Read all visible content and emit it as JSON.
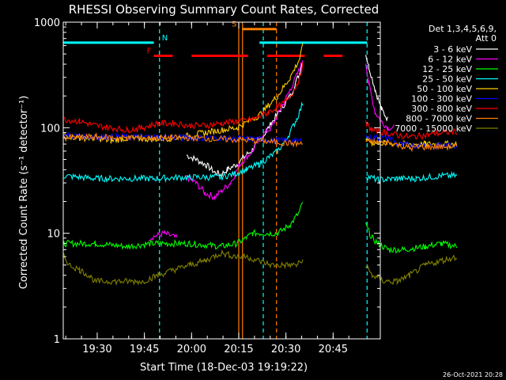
{
  "chart_data": {
    "type": "line",
    "title": "RHESSI Observing Summary Count Rates, Corrected",
    "xlabel": "Start Time (18-Dec-03 19:19:22)",
    "ylabel": "Corrected Count Rate (s⁻¹ detector⁻¹)",
    "ylog": true,
    "ylim": [
      1,
      1000
    ],
    "xlim_min": [
      19.32,
      21.0
    ],
    "x_ticks_min": [
      30,
      45,
      60,
      75,
      90,
      105
    ],
    "x_tick_labels": [
      "19:30",
      "19:45",
      "20:00",
      "20:15",
      "20:30",
      "20:45"
    ],
    "y_ticks": [
      1,
      10,
      100,
      1000
    ],
    "y_tick_labels": [
      "1",
      "10",
      "100",
      "1000"
    ],
    "legend_header": [
      "Det 1,3,4,5,6,9,",
      "Att 0"
    ],
    "legend_placement": "right",
    "series": [
      {
        "name": "3 - 6 keV",
        "color": "#ffffff",
        "segments": [
          [
            [
              39,
              55
            ],
            [
              42,
              50
            ],
            [
              45,
              45
            ],
            [
              48,
              38
            ],
            [
              50,
              36
            ],
            [
              52,
              40
            ],
            [
              55,
              45
            ],
            [
              58,
              55
            ],
            [
              60,
              62
            ],
            [
              63,
              80
            ],
            [
              66,
              110
            ],
            [
              69,
              150
            ],
            [
              72,
              200
            ],
            [
              75,
              330
            ],
            [
              76,
              440
            ]
          ],
          [
            [
              96,
              500
            ],
            [
              97,
              380
            ],
            [
              99,
              230
            ],
            [
              101,
              150
            ],
            [
              103,
              120
            ]
          ]
        ]
      },
      {
        "name": "6 - 12 keV",
        "color": "#ff00ff",
        "segments": [
          [
            [
              27,
              9
            ],
            [
              32,
              10
            ],
            [
              36,
              9
            ]
          ],
          [
            [
              39,
              34
            ],
            [
              42,
              30
            ],
            [
              45,
              24
            ],
            [
              48,
              22
            ],
            [
              50,
              25
            ],
            [
              53,
              30
            ],
            [
              56,
              45
            ],
            [
              60,
              60
            ],
            [
              63,
              85
            ],
            [
              66,
              100
            ],
            [
              69,
              150
            ],
            [
              72,
              230
            ],
            [
              75,
              360
            ],
            [
              76,
              450
            ]
          ],
          [
            [
              96,
              420
            ],
            [
              97,
              260
            ],
            [
              99,
              140
            ],
            [
              101,
              115
            ],
            [
              103,
              100
            ],
            [
              105,
              100
            ]
          ]
        ]
      },
      {
        "name": "12 - 25 keV",
        "color": "#00ff00",
        "segments": [
          [
            [
              0,
              8
            ],
            [
              10,
              8
            ],
            [
              20,
              7.5
            ],
            [
              28,
              8
            ],
            [
              30,
              8
            ],
            [
              40,
              8
            ],
            [
              50,
              7.5
            ],
            [
              55,
              8
            ],
            [
              58,
              9
            ],
            [
              60,
              10
            ],
            [
              64,
              10
            ],
            [
              68,
              10
            ],
            [
              72,
              12
            ],
            [
              75,
              16
            ],
            [
              76,
              20
            ]
          ],
          [
            [
              96,
              12
            ],
            [
              98,
              9
            ],
            [
              100,
              8
            ],
            [
              103,
              7
            ],
            [
              108,
              7
            ],
            [
              115,
              7.5
            ],
            [
              120,
              8
            ],
            [
              125,
              7.5
            ]
          ]
        ]
      },
      {
        "name": "25 - 50 keV",
        "color": "#00ffff",
        "segments": [
          [
            [
              0,
              35
            ],
            [
              10,
              33
            ],
            [
              20,
              33
            ],
            [
              28,
              33
            ],
            [
              40,
              34
            ],
            [
              50,
              34
            ],
            [
              55,
              37
            ],
            [
              58,
              40
            ],
            [
              62,
              45
            ],
            [
              65,
              52
            ],
            [
              68,
              60
            ],
            [
              71,
              80
            ],
            [
              74,
              120
            ],
            [
              76,
              170
            ]
          ],
          [
            [
              96,
              35
            ],
            [
              100,
              32
            ],
            [
              106,
              33
            ],
            [
              112,
              33
            ],
            [
              120,
              35
            ],
            [
              125,
              35
            ]
          ]
        ]
      },
      {
        "name": "50 - 100 keV",
        "color": "#ffcc00",
        "segments": [
          [
            [
              0,
              85
            ],
            [
              5,
              80
            ],
            [
              10,
              80
            ],
            [
              15,
              75
            ],
            [
              20,
              80
            ],
            [
              28,
              78
            ],
            [
              36,
              80
            ],
            [
              45,
              90
            ],
            [
              55,
              100
            ],
            [
              62,
              130
            ],
            [
              68,
              200
            ],
            [
              72,
              300
            ],
            [
              75,
              450
            ],
            [
              76,
              600
            ]
          ],
          [
            [
              96,
              80
            ],
            [
              98,
              72
            ],
            [
              102,
              72
            ],
            [
              108,
              70
            ],
            [
              115,
              70
            ],
            [
              125,
              70
            ]
          ]
        ]
      },
      {
        "name": "100 - 300 keV",
        "color": "#0000ff",
        "segments": [
          [
            [
              0,
              85
            ],
            [
              10,
              82
            ],
            [
              20,
              82
            ],
            [
              28,
              82
            ],
            [
              40,
              80
            ],
            [
              50,
              80
            ],
            [
              60,
              78
            ],
            [
              70,
              75
            ],
            [
              76,
              75
            ]
          ],
          [
            [
              96,
              82
            ],
            [
              100,
              80
            ],
            [
              104,
              80
            ],
            [
              106,
              70
            ],
            [
              110,
              68
            ],
            [
              120,
              68
            ],
            [
              125,
              68
            ]
          ]
        ]
      },
      {
        "name": "300 - 800 keV",
        "color": "#ff0000",
        "segments": [
          [
            [
              0,
              120
            ],
            [
              5,
              115
            ],
            [
              10,
              105
            ],
            [
              15,
              100
            ],
            [
              20,
              95
            ],
            [
              25,
              100
            ],
            [
              30,
              110
            ],
            [
              35,
              110
            ],
            [
              40,
              105
            ],
            [
              45,
              105
            ],
            [
              50,
              110
            ],
            [
              55,
              115
            ],
            [
              60,
              120
            ],
            [
              65,
              140
            ],
            [
              70,
              170
            ],
            [
              73,
              220
            ],
            [
              75,
              300
            ],
            [
              76,
              400
            ]
          ],
          [
            [
              96,
              110
            ],
            [
              98,
              95
            ],
            [
              102,
              90
            ],
            [
              106,
              85
            ],
            [
              110,
              82
            ],
            [
              114,
              84
            ],
            [
              118,
              88
            ],
            [
              125,
              92
            ]
          ]
        ]
      },
      {
        "name": "800 - 7000 keV",
        "color": "#ff8000",
        "segments": [
          [
            [
              0,
              80
            ],
            [
              10,
              82
            ],
            [
              20,
              80
            ],
            [
              28,
              80
            ],
            [
              40,
              80
            ],
            [
              50,
              78
            ],
            [
              60,
              76
            ],
            [
              70,
              72
            ],
            [
              76,
              70
            ]
          ],
          [
            [
              96,
              75
            ],
            [
              100,
              72
            ],
            [
              104,
              72
            ],
            [
              110,
              64
            ],
            [
              116,
              66
            ],
            [
              125,
              66
            ]
          ]
        ]
      },
      {
        "name": "7000 - 15000 keV",
        "color": "#808000",
        "segments": [
          [
            [
              0,
              6
            ],
            [
              2,
              5
            ],
            [
              5,
              4.5
            ],
            [
              8,
              4
            ],
            [
              10,
              3.5
            ],
            [
              15,
              3.5
            ],
            [
              20,
              3.5
            ],
            [
              25,
              3.5
            ],
            [
              30,
              4
            ],
            [
              35,
              4.5
            ],
            [
              40,
              5
            ],
            [
              45,
              5.5
            ],
            [
              50,
              6.5
            ],
            [
              55,
              6
            ],
            [
              58,
              6
            ],
            [
              62,
              5.5
            ],
            [
              66,
              5
            ],
            [
              70,
              5
            ],
            [
              74,
              5
            ],
            [
              76,
              5.5
            ]
          ],
          [
            [
              96,
              5
            ],
            [
              98,
              4
            ],
            [
              102,
              3.5
            ],
            [
              106,
              3.5
            ],
            [
              110,
              4
            ],
            [
              115,
              5
            ],
            [
              120,
              5.5
            ],
            [
              125,
              6
            ]
          ]
        ]
      }
    ],
    "flag_bars": [
      {
        "label": "",
        "color": "#00ffff",
        "y": 640,
        "x_ranges": [
          [
            19.32,
            19.8
          ],
          [
            20.36,
            20.93
          ]
        ]
      },
      {
        "label": "N",
        "color": "#00ffff",
        "y": 640,
        "label_at": 19.83,
        "x_ranges": []
      },
      {
        "label": "F",
        "color": "#ff0000",
        "y": 480,
        "label_at": 19.75,
        "x_ranges": [
          [
            19.8,
            19.9
          ],
          [
            20.0,
            20.3
          ],
          [
            20.4,
            20.6
          ],
          [
            20.7,
            20.8
          ]
        ]
      },
      {
        "label": "S",
        "color": "#ff8000",
        "y": 860,
        "label_at": 20.2,
        "x_ranges": [
          [
            20.27,
            20.45
          ]
        ]
      }
    ],
    "vlines": [
      {
        "color": "#00ffff",
        "style": "dashed",
        "x": 19.83
      },
      {
        "color": "#00ffff",
        "style": "dashed",
        "x": 20.38
      },
      {
        "color": "#00ffff",
        "style": "dashed",
        "x": 20.93
      },
      {
        "color": "#ff8000",
        "style": "solid",
        "x": 20.25
      },
      {
        "color": "#ff8000",
        "style": "solid",
        "x": 20.27
      },
      {
        "color": "#ff8000",
        "style": "dashed",
        "x": 20.45
      }
    ],
    "timestamp": "26-Oct-2021 20:28"
  }
}
